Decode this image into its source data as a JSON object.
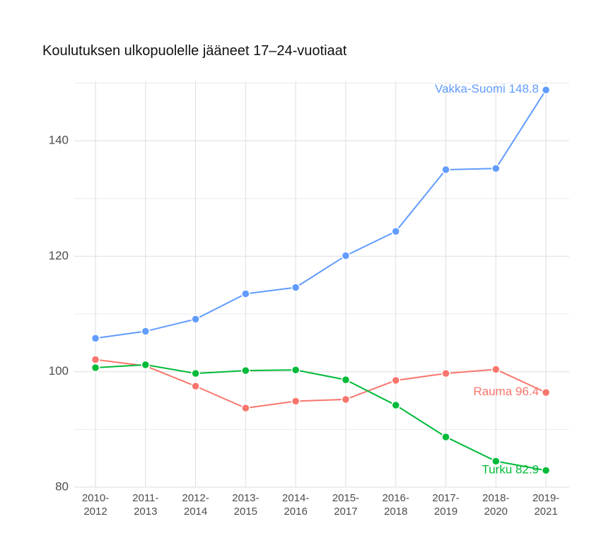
{
  "chart_data": {
    "type": "line",
    "title": "Koulutuksen ulkopuolelle jääneet 17–24-vuotiaat",
    "categories": [
      "2010-2012",
      "2011-2013",
      "2012-2014",
      "2013-2015",
      "2014-2016",
      "2015-2017",
      "2016-2018",
      "2017-2019",
      "2018-2020",
      "2019-2021"
    ],
    "series": [
      {
        "name": "Vakka-Suomi",
        "color": "#619CFF",
        "values": [
          105.8,
          107.0,
          109.1,
          113.5,
          114.6,
          120.1,
          124.3,
          135.0,
          135.2,
          148.8
        ]
      },
      {
        "name": "Rauma",
        "color": "#F8766D",
        "values": [
          102.1,
          101.0,
          97.5,
          93.7,
          94.9,
          95.2,
          98.5,
          99.7,
          100.4,
          96.4
        ]
      },
      {
        "name": "Turku",
        "color": "#00BA38",
        "values": [
          100.7,
          101.2,
          99.7,
          100.2,
          100.3,
          98.6,
          94.2,
          88.7,
          84.5,
          82.9
        ]
      }
    ],
    "ylim": [
      80,
      150.3
    ],
    "yticks": [
      80,
      100,
      120,
      140
    ],
    "minor_yticks": [
      90,
      110,
      130,
      150
    ],
    "grid": true
  }
}
